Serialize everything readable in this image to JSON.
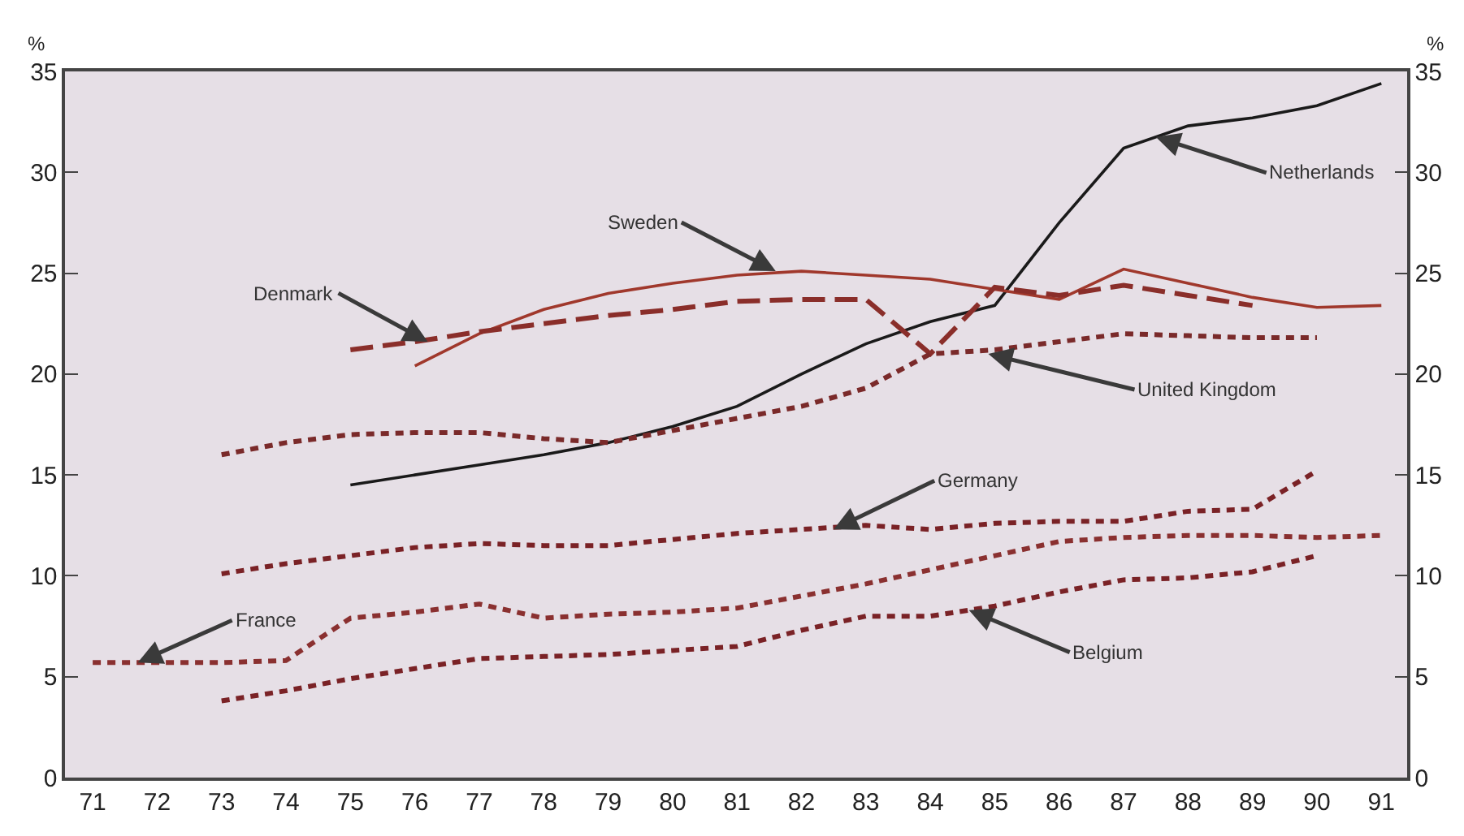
{
  "chart_data": {
    "type": "line",
    "ylabel": "%",
    "y2label": "%",
    "xlim": [
      70.57,
      91.4
    ],
    "xticks": [
      71,
      72,
      73,
      74,
      75,
      76,
      77,
      78,
      79,
      80,
      81,
      82,
      83,
      84,
      85,
      86,
      87,
      88,
      89,
      90,
      91
    ],
    "ylim": [
      0,
      35
    ],
    "yticks": [
      0,
      5,
      10,
      15,
      20,
      25,
      30,
      35
    ],
    "y2lim": [
      0,
      35
    ],
    "y2ticks": [
      0,
      5,
      10,
      15,
      20,
      25,
      30,
      35
    ],
    "grid": false,
    "marker": "none",
    "series": [
      {
        "color": "#1a1a1a",
        "line_style": "solid",
        "x": [
          75,
          76,
          77,
          78,
          79,
          80,
          81,
          82,
          83,
          84,
          85,
          86,
          87,
          88,
          89,
          90,
          91
        ],
        "values": [
          14.5,
          15.0,
          15.5,
          16.0,
          16.6,
          17.4,
          18.4,
          20.0,
          21.5,
          22.6,
          23.4,
          27.5,
          31.2,
          32.3,
          32.7,
          33.3,
          34.4
        ]
      },
      {
        "color": "#a0382c",
        "line_style": "solid",
        "x": [
          76,
          77,
          78,
          79,
          80,
          81,
          82,
          83,
          84,
          85,
          86,
          87,
          88,
          89,
          90,
          91
        ],
        "values": [
          20.4,
          22.0,
          23.2,
          24.0,
          24.5,
          24.9,
          25.1,
          24.9,
          24.7,
          24.2,
          23.7,
          25.2,
          24.5,
          23.8,
          23.3,
          23.4
        ]
      },
      {
        "color": "#8a2e2a",
        "line_style": "dashed",
        "x": [
          75,
          76,
          77,
          78,
          79,
          80,
          81,
          82,
          83,
          84,
          85,
          86,
          87,
          88,
          89
        ],
        "values": [
          21.2,
          21.6,
          22.1,
          22.5,
          22.9,
          23.2,
          23.6,
          23.7,
          23.7,
          21.0,
          24.3,
          23.9,
          24.4,
          23.9,
          23.4
        ]
      },
      {
        "color": "#7a2a2a",
        "line_style": "dotted",
        "x": [
          73,
          74,
          75,
          76,
          77,
          78,
          79,
          80,
          81,
          82,
          83,
          84,
          85,
          86,
          87,
          88,
          89,
          90
        ],
        "values": [
          16.0,
          16.6,
          17.0,
          17.1,
          17.1,
          16.8,
          16.6,
          17.2,
          17.8,
          18.4,
          19.3,
          21.0,
          21.2,
          21.6,
          22.0,
          21.9,
          21.8,
          21.8
        ]
      },
      {
        "color": "#7a2226",
        "line_style": "dotted",
        "x": [
          73,
          74,
          75,
          76,
          77,
          78,
          79,
          80,
          81,
          82,
          83,
          84,
          85,
          86,
          87,
          88,
          89,
          90
        ],
        "values": [
          10.1,
          10.6,
          11.0,
          11.4,
          11.6,
          11.5,
          11.5,
          11.8,
          12.1,
          12.3,
          12.5,
          12.3,
          12.6,
          12.7,
          12.7,
          13.2,
          13.3,
          15.2
        ]
      },
      {
        "color": "#8a3030",
        "line_style": "dotted",
        "x": [
          71,
          72,
          73,
          74,
          75,
          76,
          77,
          78,
          79,
          80,
          81,
          82,
          83,
          84,
          85,
          86,
          87,
          88,
          89,
          90,
          91
        ],
        "values": [
          5.7,
          5.7,
          5.7,
          5.8,
          7.9,
          8.2,
          8.6,
          7.9,
          8.1,
          8.2,
          8.4,
          9.0,
          9.6,
          10.3,
          11.0,
          11.7,
          11.9,
          12.0,
          12.0,
          11.9,
          12.0
        ]
      },
      {
        "color": "#7a2226",
        "line_style": "dotted",
        "x": [
          73,
          74,
          75,
          76,
          77,
          78,
          79,
          80,
          81,
          82,
          83,
          84,
          85,
          86,
          87,
          88,
          89,
          90
        ],
        "values": [
          3.8,
          4.3,
          4.9,
          5.4,
          5.9,
          6.0,
          6.1,
          6.3,
          6.5,
          7.3,
          8.0,
          8.0,
          8.5,
          9.2,
          9.8,
          9.9,
          10.2,
          11.0
        ]
      }
    ],
    "annotations": [
      {
        "text": "Netherlands",
        "x": 87.5,
        "y": 31.75
      },
      {
        "text": "Sweden",
        "x": 81.6,
        "y": 25.1
      },
      {
        "text": "Denmark",
        "x": 76.2,
        "y": 21.6
      },
      {
        "text": "United Kingdom",
        "x": 84.9,
        "y": 21.0
      },
      {
        "text": "Germany",
        "x": 82.5,
        "y": 12.3
      },
      {
        "text": "France",
        "x": 71.7,
        "y": 5.7
      },
      {
        "text": "Belgium",
        "x": 84.6,
        "y": 8.3
      }
    ]
  }
}
